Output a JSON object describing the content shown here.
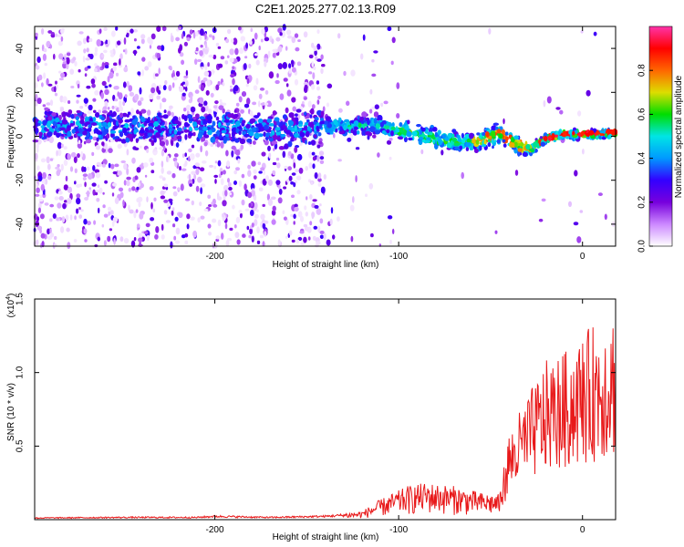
{
  "figure_title": "C2E1.2025.277.02.13.R09",
  "chart_data": [
    {
      "type": "heatmap",
      "title": "",
      "xlabel": "Height of straight line (km)",
      "ylabel": "Frequency (Hz)",
      "xlim": [
        -298,
        18
      ],
      "ylim": [
        -50,
        50
      ],
      "x_ticks": [
        "-200",
        "-100",
        "0"
      ],
      "y_ticks": [
        "-40",
        "-20",
        "0",
        "20",
        "40"
      ],
      "colorbar": {
        "label": "Normalized spectral amplitude",
        "range": [
          0,
          1
        ],
        "ticks": [
          "0.0",
          "0.2",
          "0.4",
          "0.6",
          "0.8"
        ],
        "colors": [
          "#ffffff",
          "#cc88ff",
          "#7700dd",
          "#3300ff",
          "#0099ff",
          "#00e5e5",
          "#00dd00",
          "#dddd00",
          "#ff6600",
          "#ff0000",
          "#ff33aa"
        ]
      },
      "trace_centerline": {
        "x": [
          -298,
          -250,
          -200,
          -160,
          -130,
          -110,
          -90,
          -75,
          -60,
          -45,
          -35,
          -28,
          -20,
          -10,
          0,
          10,
          18
        ],
        "y": [
          5,
          4,
          4,
          3,
          5,
          5,
          1,
          -2,
          -3,
          1,
          -4,
          -6,
          -1,
          1,
          1,
          1,
          2
        ]
      }
    },
    {
      "type": "line",
      "title": "",
      "xlabel": "Height of straight line (km)",
      "ylabel": "SNR (10 * v/v)",
      "y_multiplier": "(x10",
      "y_multiplier_exp": "4",
      "y_multiplier_close": ")",
      "xlim": [
        -298,
        18
      ],
      "ylim": [
        0,
        1.5
      ],
      "x_ticks": [
        "-200",
        "-100",
        "0"
      ],
      "y_ticks": [
        "0.5",
        "1.0",
        "1.5"
      ],
      "series": [
        {
          "color": "#e8191a",
          "envelope_x": [
            -298,
            -250,
            -210,
            -200,
            -170,
            -140,
            -120,
            -110,
            -95,
            -85,
            -70,
            -55,
            -45,
            -40,
            -30,
            -20,
            -10,
            0,
            10,
            18
          ],
          "envelope_y": [
            0.015,
            0.02,
            0.02,
            0.03,
            0.02,
            0.03,
            0.05,
            0.12,
            0.2,
            0.22,
            0.2,
            0.16,
            0.15,
            0.5,
            0.7,
            0.9,
            0.95,
            1.05,
            1.15,
            1.2
          ]
        }
      ]
    }
  ]
}
